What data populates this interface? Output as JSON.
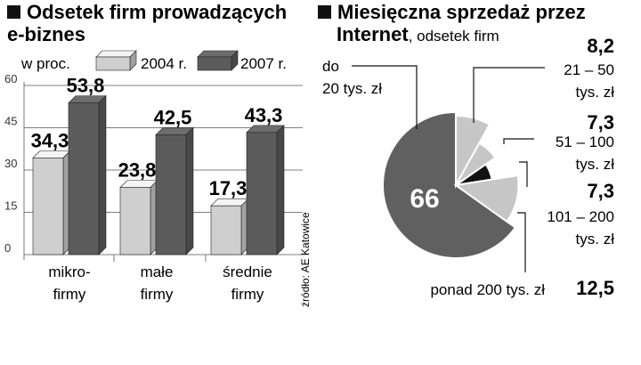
{
  "colors": {
    "light_bar": "#cfcfcf",
    "dark_bar": "#5c5c5c",
    "pie_main": "#606060",
    "pie_light": "#c6c6c6",
    "pie_mid": "#9a9a9a",
    "pie_black": "#111111"
  },
  "chart_data": [
    {
      "type": "bar",
      "title_line1": "Odsetek firm prowadzących",
      "title_line2": "e-biznes",
      "unit_label": "w proc.",
      "categories": [
        [
          "mikro-",
          "firmy"
        ],
        [
          "małe",
          "firmy"
        ],
        [
          "średnie",
          "firmy"
        ]
      ],
      "series": [
        {
          "name": "2004 r.",
          "values": [
            34.3,
            23.8,
            17.3
          ],
          "value_labels": [
            "34,3",
            "23,8",
            "17,3"
          ]
        },
        {
          "name": "2007 r.",
          "values": [
            53.8,
            42.5,
            43.3
          ],
          "value_labels": [
            "53,8",
            "42,5",
            "43,3"
          ]
        }
      ],
      "yticks": [
        0,
        15,
        30,
        45,
        60
      ],
      "ylim": [
        0,
        60
      ],
      "grid": true,
      "legend": "top",
      "source": "źródło: AE Katowice"
    },
    {
      "type": "pie",
      "title_line1": "Miesięczna sprzedaż przez",
      "title_line2_bold": "Internet",
      "title_line2_rest": ", odsetek firm",
      "slices": [
        {
          "label": [
            "do",
            "20 tys. zł"
          ],
          "value": 66,
          "value_label": "66"
        },
        {
          "label": [
            "21 – 50",
            "tys. zł"
          ],
          "value": 8.2,
          "value_label": "8,2"
        },
        {
          "label": [
            "51 – 100",
            "tys. zł"
          ],
          "value": 7.3,
          "value_label": "7,3"
        },
        {
          "label": [
            "101 – 200",
            "tys. zł"
          ],
          "value": 7.3,
          "value_label": "7,3"
        },
        {
          "label": [
            "ponad 200 tys. zł"
          ],
          "value": 12.5,
          "value_label": "12,5"
        }
      ]
    }
  ]
}
